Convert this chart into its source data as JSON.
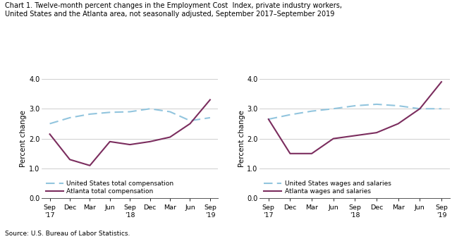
{
  "title_line1": "Chart 1. Twelve-month percent changes in the Employment Cost  Index, private industry workers,",
  "title_line2": "United States and the Atlanta area, not seasonally adjusted, September 2017–September 2019",
  "source": "Source: U.S. Bureau of Labor Statistics.",
  "x_labels": [
    "Sep\n'17",
    "Dec",
    "Mar",
    "Jun",
    "Sep\n'18",
    "Dec",
    "Mar",
    "Jun",
    "Sep\n'19"
  ],
  "left_chart": {
    "ylabel": "Percent change",
    "us_total_comp": [
      2.5,
      2.7,
      2.82,
      2.88,
      2.9,
      3.0,
      2.9,
      2.6,
      2.7
    ],
    "atlanta_total_comp": [
      2.15,
      1.3,
      1.1,
      1.9,
      1.8,
      1.9,
      2.05,
      2.5,
      3.3
    ],
    "legend_us": "United States total compensation",
    "legend_atl": "Atlanta total compensation"
  },
  "right_chart": {
    "ylabel": "Percent change",
    "us_wages": [
      2.65,
      2.8,
      2.92,
      3.0,
      3.1,
      3.15,
      3.1,
      3.0,
      3.0
    ],
    "atlanta_wages": [
      2.65,
      1.5,
      1.5,
      2.0,
      2.1,
      2.2,
      2.5,
      3.0,
      3.9
    ],
    "legend_us": "United States wages and salaries",
    "legend_atl": "Atlanta wages and salaries"
  },
  "us_color": "#92C5DE",
  "atlanta_color": "#7B2D5E",
  "ylim": [
    0.0,
    4.0
  ],
  "yticks": [
    0.0,
    1.0,
    2.0,
    3.0,
    4.0
  ],
  "ytick_labels": [
    "0.0",
    "1.0",
    "2.0",
    "3.0",
    "4.0"
  ],
  "linewidth": 1.5
}
